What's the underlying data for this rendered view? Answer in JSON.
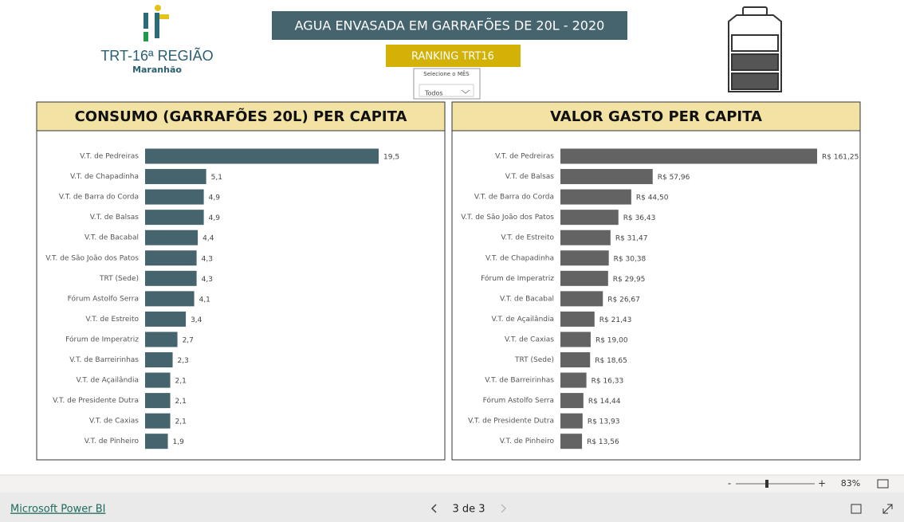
{
  "header": {
    "logo_title": "TRT-16ª REGIÃO",
    "logo_subtitle": "Maranhão",
    "title": "AGUA ENVASADA EM GARRAFÕES DE 20L - 2020",
    "subtitle": "RANKING TRT16"
  },
  "slicer": {
    "label": "Selecione o MÊS",
    "value": "Todos"
  },
  "chart_data": [
    {
      "type": "bar",
      "orientation": "horizontal",
      "title": "CONSUMO (GARRAFÕES 20L) PER CAPITA",
      "color": "#45646e",
      "categories": [
        "V.T. de Pedreiras",
        "V.T. de Chapadinha",
        "V.T. de Barra do Corda",
        "V.T. de Balsas",
        "V.T. de Bacabal",
        "V.T. de São João dos Patos",
        "TRT (Sede)",
        "Fórum Astolfo Serra",
        "V.T. de Estreito",
        "Fórum de Imperatriz",
        "V.T. de Barreirinhas",
        "V.T. de Açailândia",
        "V.T. de Presidente Dutra",
        "V.T. de Caxias",
        "V.T. de Pinheiro"
      ],
      "values": [
        19.5,
        5.1,
        4.9,
        4.9,
        4.4,
        4.3,
        4.3,
        4.1,
        3.4,
        2.7,
        2.3,
        2.1,
        2.1,
        2.1,
        1.9
      ],
      "value_labels": [
        "19,5",
        "5,1",
        "4,9",
        "4,9",
        "4,4",
        "4,3",
        "4,3",
        "4,1",
        "3,4",
        "2,7",
        "2,3",
        "2,1",
        "2,1",
        "2,1",
        "1,9"
      ]
    },
    {
      "type": "bar",
      "orientation": "horizontal",
      "title": "VALOR GASTO PER CAPITA",
      "color": "#636363",
      "categories": [
        "V.T. de Pedreiras",
        "V.T. de Balsas",
        "V.T. de Barra do Corda",
        "V.T. de São João dos Patos",
        "V.T. de Estreito",
        "V.T. de Chapadinha",
        "Fórum de Imperatriz",
        "V.T. de Bacabal",
        "V.T. de Açailândia",
        "V.T. de Caxias",
        "TRT (Sede)",
        "V.T. de Barreirinhas",
        "Fórum Astolfo Serra",
        "V.T. de Presidente Dutra",
        "V.T. de Pinheiro"
      ],
      "values": [
        161.25,
        57.96,
        44.5,
        36.43,
        31.47,
        30.38,
        29.95,
        26.67,
        21.43,
        19.0,
        18.65,
        16.33,
        14.44,
        13.93,
        13.56
      ],
      "value_labels": [
        "R$ 161,25",
        "R$ 57,96",
        "R$ 44,50",
        "R$ 36,43",
        "R$ 31,47",
        "R$ 30,38",
        "R$ 29,95",
        "R$ 26,67",
        "R$ 21,43",
        "R$ 19,00",
        "R$ 18,65",
        "R$ 16,33",
        "R$ 14,44",
        "R$ 13,93",
        "R$ 13,56"
      ]
    }
  ],
  "zoom": {
    "minus": "-",
    "plus": "+",
    "level": "83%"
  },
  "footer": {
    "brand": "Microsoft Power BI",
    "page": "3 de 3"
  }
}
